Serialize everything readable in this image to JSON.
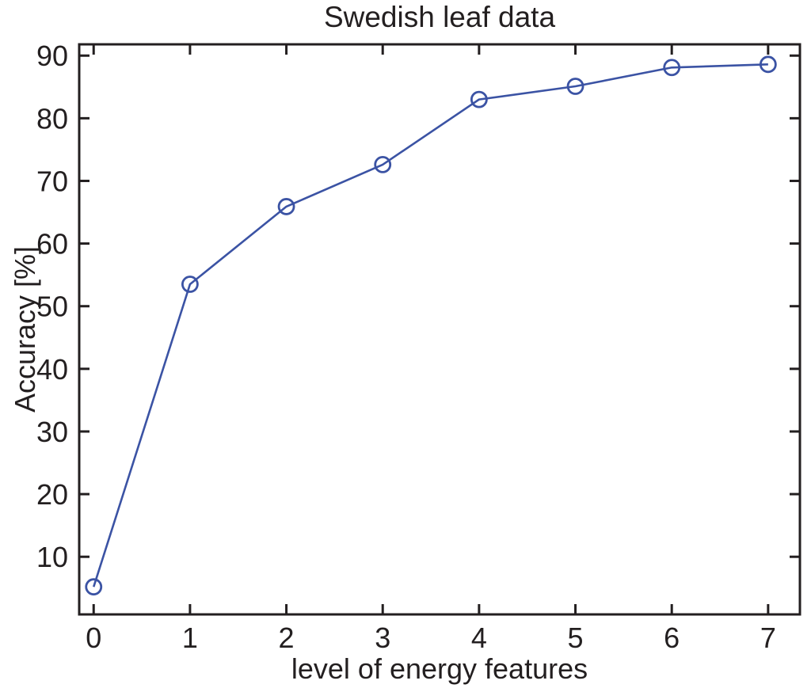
{
  "chart_data": {
    "type": "line",
    "title": "Swedish leaf data",
    "xlabel": "level of energy features",
    "ylabel": "Accuracy [%]",
    "x": [
      0,
      1,
      2,
      3,
      4,
      5,
      6,
      7
    ],
    "series": [
      {
        "name": "accuracy",
        "values": [
          5.2,
          53.5,
          65.9,
          72.6,
          83.0,
          85.1,
          88.1,
          88.6
        ]
      }
    ],
    "xticks": [
      "0",
      "1",
      "2",
      "3",
      "4",
      "5",
      "6",
      "7"
    ],
    "xtick_values": [
      0,
      1,
      2,
      3,
      4,
      5,
      6,
      7
    ],
    "yticks": [
      "10",
      "20",
      "30",
      "40",
      "50",
      "60",
      "70",
      "80",
      "90"
    ],
    "ytick_values": [
      10,
      20,
      30,
      40,
      50,
      60,
      70,
      80,
      90
    ],
    "xlim": [
      -0.15,
      7.33
    ],
    "ylim": [
      0.8,
      91.8
    ],
    "grid": false,
    "legend_position": "none",
    "marker": "open-circle",
    "line_color": "#3b53a4",
    "axis_color": "#231f20",
    "background_color": "#ffffff"
  }
}
